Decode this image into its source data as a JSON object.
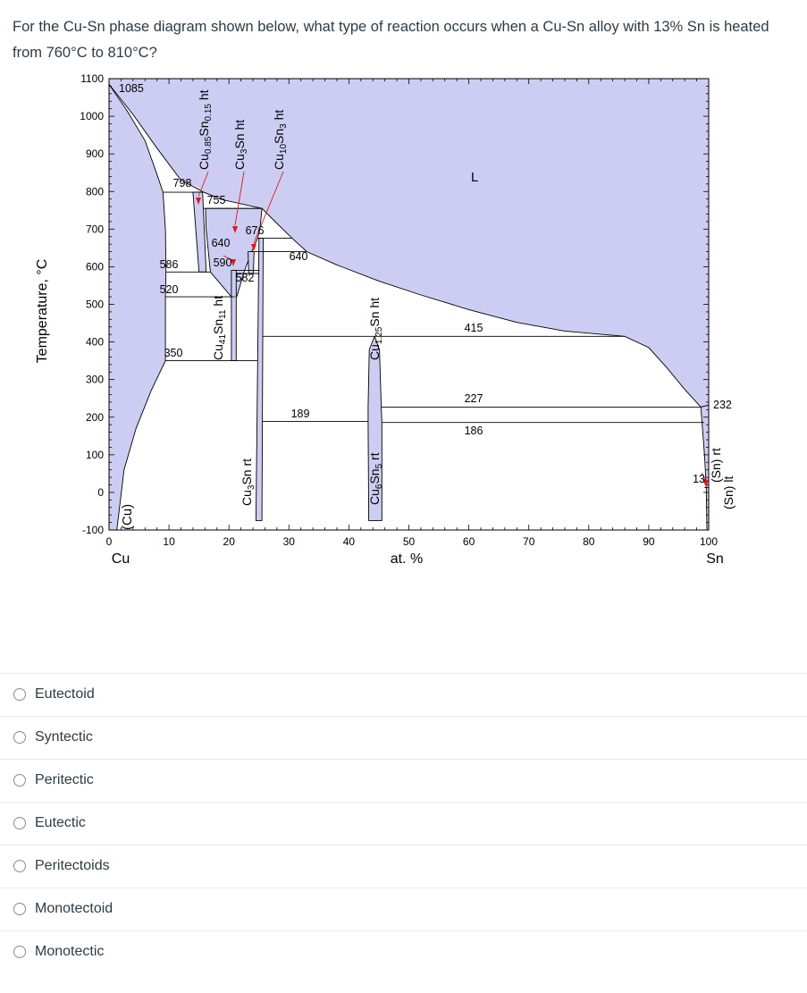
{
  "question": {
    "text": "For the Cu-Sn phase diagram shown below, what type of reaction occurs when a Cu-Sn alloy with 13% Sn is heated from 760°C to 810°C?"
  },
  "options": [
    {
      "label": "Eutectoid"
    },
    {
      "label": "Syntectic"
    },
    {
      "label": "Peritectic"
    },
    {
      "label": "Eutectic"
    },
    {
      "label": "Peritectoids"
    },
    {
      "label": "Monotectoid"
    },
    {
      "label": "Monotectic"
    }
  ],
  "diagram": {
    "colors": {
      "single_phase_fill": "#cdcdf3",
      "boundary_line": "#000000",
      "leader_red": "#e01818"
    },
    "y_axis": {
      "label": "Temperature, °C",
      "ticks": [
        "1100",
        "1000",
        "900",
        "800",
        "700",
        "600",
        "500",
        "400",
        "300",
        "200",
        "100",
        "0",
        "-100"
      ]
    },
    "x_axis": {
      "label": "at. %",
      "left_label": "Cu",
      "right_label": "Sn",
      "ticks": [
        "0",
        "10",
        "20",
        "30",
        "40",
        "50",
        "60",
        "70",
        "80",
        "90",
        "100"
      ]
    },
    "region_labels": {
      "liquid": "L",
      "cu_fcc": "(Cu)",
      "sn_rt": "(Sn) rt",
      "sn_lt": "(Sn) lt"
    },
    "temps": {
      "t1085": "1085",
      "t798": "798",
      "t755": "755",
      "t676": "676",
      "t640_left": "640",
      "t640_right": "640",
      "t586": "586",
      "t590": "590",
      "t582": "582",
      "t520": "520",
      "t415": "415",
      "t350": "350",
      "t227": "227",
      "t189": "189",
      "t186": "186",
      "t232": "232",
      "t13": "13"
    },
    "phases": {
      "beta": [
        [
          "n",
          "Cu"
        ],
        [
          "s",
          "0.85"
        ],
        [
          "n",
          "Sn"
        ],
        [
          "s",
          "0.15"
        ],
        [
          "n",
          " ht"
        ]
      ],
      "gamma": [
        [
          "n",
          "Cu"
        ],
        [
          "s",
          "3"
        ],
        [
          "n",
          "Sn ht"
        ]
      ],
      "zeta": [
        [
          "n",
          "Cu"
        ],
        [
          "s",
          "10"
        ],
        [
          "n",
          "Sn"
        ],
        [
          "s",
          "3"
        ],
        [
          "n",
          " ht"
        ]
      ],
      "delta": [
        [
          "n",
          "Cu"
        ],
        [
          "s",
          "41"
        ],
        [
          "n",
          "Sn"
        ],
        [
          "s",
          "11"
        ],
        [
          "n",
          " ht"
        ]
      ],
      "epsilon": [
        [
          "n",
          "Cu"
        ],
        [
          "s",
          "3"
        ],
        [
          "n",
          "Sn rt"
        ]
      ],
      "eta_ht": [
        [
          "n",
          "Cu"
        ],
        [
          "s",
          "1.25"
        ],
        [
          "n",
          "Sn ht"
        ]
      ],
      "eta_rt": [
        [
          "n",
          "Cu"
        ],
        [
          "s",
          "6"
        ],
        [
          "n",
          "Sn"
        ],
        [
          "s",
          "5"
        ],
        [
          "n",
          " rt"
        ]
      ]
    }
  }
}
